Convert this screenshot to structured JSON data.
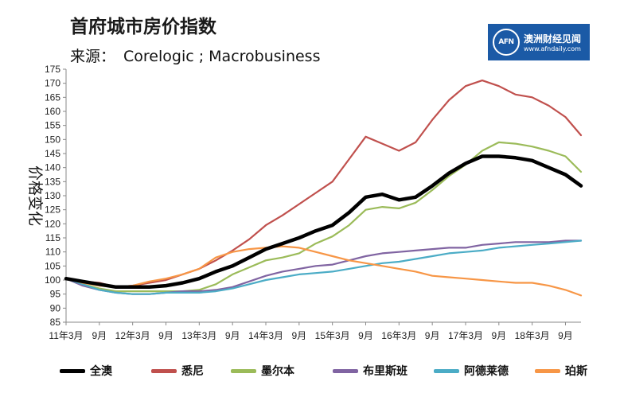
{
  "title": "首府城市房价指数",
  "source_label": "来源：",
  "source_value": "Corelogic ; Macrobusiness",
  "logo": {
    "name": "澳洲财经见闻",
    "url": "www.afndaily.com",
    "mark": "AFN",
    "color": "#1b5aa6"
  },
  "chart_data": {
    "type": "line",
    "title": "首府城市房价指数",
    "ylabel": "价格变化",
    "xlabel": "",
    "ylim": [
      85,
      175
    ],
    "yticks": [
      85,
      90,
      95,
      100,
      105,
      110,
      115,
      120,
      125,
      130,
      135,
      140,
      145,
      150,
      155,
      160,
      165,
      170,
      175
    ],
    "xlim": [
      2011.1667,
      2018.9
    ],
    "xticks": [
      {
        "label": "11年3月",
        "x": 2011.1667
      },
      {
        "label": "9月",
        "x": 2011.6667
      },
      {
        "label": "12年3月",
        "x": 2012.1667
      },
      {
        "label": "9月",
        "x": 2012.6667
      },
      {
        "label": "13年3月",
        "x": 2013.1667
      },
      {
        "label": "9月",
        "x": 2013.6667
      },
      {
        "label": "14年3月",
        "x": 2014.1667
      },
      {
        "label": "9月",
        "x": 2014.6667
      },
      {
        "label": "15年3月",
        "x": 2015.1667
      },
      {
        "label": "9月",
        "x": 2015.6667
      },
      {
        "label": "16年3月",
        "x": 2016.1667
      },
      {
        "label": "9月",
        "x": 2016.6667
      },
      {
        "label": "17年3月",
        "x": 2017.1667
      },
      {
        "label": "9月",
        "x": 2017.6667
      },
      {
        "label": "18年3月",
        "x": 2018.1667
      },
      {
        "label": "9月",
        "x": 2018.6667
      }
    ],
    "grid": false,
    "legend_position": "bottom",
    "x": [
      2011.1667,
      2011.4167,
      2011.6667,
      2011.9167,
      2012.1667,
      2012.4167,
      2012.6667,
      2012.9167,
      2013.1667,
      2013.4167,
      2013.6667,
      2013.9167,
      2014.1667,
      2014.4167,
      2014.6667,
      2014.9167,
      2015.1667,
      2015.4167,
      2015.6667,
      2015.9167,
      2016.1667,
      2016.4167,
      2016.6667,
      2016.9167,
      2017.1667,
      2017.4167,
      2017.6667,
      2017.9167,
      2018.1667,
      2018.4167,
      2018.6667,
      2018.9
    ],
    "series": [
      {
        "name": "全澳",
        "color": "#000000",
        "width": 4.5,
        "values": [
          100.5,
          99.5,
          98.5,
          97.5,
          97.5,
          97.5,
          98,
          99,
          100.5,
          103,
          105,
          108,
          111,
          113,
          115,
          117.5,
          119.5,
          124,
          129.5,
          130.5,
          128.5,
          129.5,
          133.5,
          138,
          141.5,
          144,
          144,
          143.5,
          142.5,
          140,
          137.5,
          133.5
        ]
      },
      {
        "name": "悉尼",
        "color": "#c0504d",
        "width": 2.2,
        "values": [
          100.5,
          99.5,
          99,
          97.5,
          98,
          99,
          100,
          102,
          104,
          107,
          110.5,
          114.5,
          119.5,
          123,
          127,
          131,
          135,
          143,
          151,
          148.5,
          146,
          149,
          157,
          164,
          169,
          171,
          169,
          166,
          165,
          162,
          158,
          151.5
        ]
      },
      {
        "name": "墨尔本",
        "color": "#9bbb59",
        "width": 2.2,
        "values": [
          100.5,
          98.5,
          97,
          96,
          96,
          96,
          96,
          96,
          96.5,
          98.5,
          102,
          104.5,
          107,
          108,
          109.5,
          113,
          115.5,
          119.5,
          125,
          126,
          125.5,
          127.5,
          132,
          137,
          141,
          146,
          149,
          148.5,
          147.5,
          146,
          144,
          138.5
        ]
      },
      {
        "name": "布里斯班",
        "color": "#8064a2",
        "width": 2.2,
        "values": [
          100.5,
          98,
          96.5,
          95.5,
          95,
          95,
          95.5,
          96,
          96,
          96.5,
          97.5,
          99.5,
          101.5,
          103,
          104,
          105,
          105.5,
          107,
          108.5,
          109.5,
          110,
          110.5,
          111,
          111.5,
          111.5,
          112.5,
          113,
          113.5,
          113.5,
          113.5,
          114,
          114
        ]
      },
      {
        "name": "阿德莱德",
        "color": "#4bacc6",
        "width": 2.2,
        "values": [
          100.5,
          98.5,
          96.5,
          95.5,
          95,
          95,
          95.5,
          95.5,
          95.5,
          96,
          97,
          98.5,
          100,
          101,
          102,
          102.5,
          103,
          104,
          105,
          106,
          106.5,
          107.5,
          108.5,
          109.5,
          110,
          110.5,
          111.5,
          112,
          112.5,
          113,
          113.5,
          114
        ]
      },
      {
        "name": "珀斯",
        "color": "#f79646",
        "width": 2.2,
        "values": [
          100.5,
          99,
          98,
          97.5,
          98,
          99.5,
          100.5,
          102,
          104,
          108,
          110,
          111,
          111.5,
          112,
          111.5,
          110,
          108.5,
          107,
          106,
          105,
          104,
          103,
          101.5,
          101,
          100.5,
          100,
          99.5,
          99,
          99,
          98,
          96.5,
          94.5
        ]
      }
    ]
  },
  "legend": [
    {
      "label": "全澳",
      "color": "#000000"
    },
    {
      "label": "悉尼",
      "color": "#c0504d"
    },
    {
      "label": "墨尔本",
      "color": "#9bbb59"
    },
    {
      "label": "布里斯班",
      "color": "#8064a2"
    },
    {
      "label": "阿德莱德",
      "color": "#4bacc6"
    },
    {
      "label": "珀斯",
      "color": "#f79646"
    }
  ]
}
